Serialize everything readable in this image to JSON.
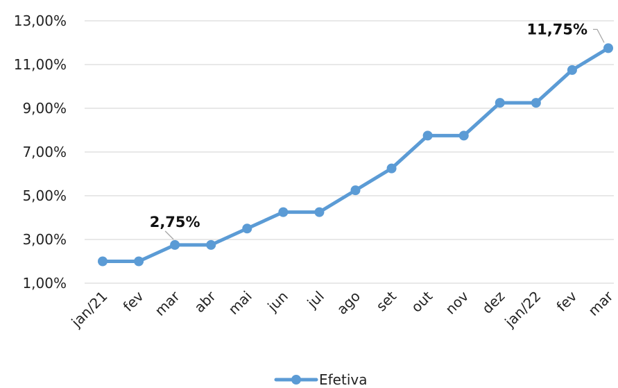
{
  "chart_data": {
    "type": "line",
    "categories": [
      "jan/21",
      "fev",
      "mar",
      "abr",
      "mai",
      "jun",
      "jul",
      "ago",
      "set",
      "out",
      "nov",
      "dez",
      "jan/22",
      "fev",
      "mar"
    ],
    "series": [
      {
        "name": "Efetiva",
        "values": [
          2.0,
          2.0,
          2.75,
          2.75,
          3.5,
          4.25,
          4.25,
          5.25,
          6.25,
          7.75,
          7.75,
          9.25,
          9.25,
          10.75,
          11.75
        ],
        "color": "#5B9BD5"
      }
    ],
    "y_ticks": [
      "1,00%",
      "3,00%",
      "5,00%",
      "7,00%",
      "9,00%",
      "11,00%",
      "13,00%"
    ],
    "y_tick_values": [
      1,
      3,
      5,
      7,
      9,
      11,
      13
    ],
    "ylim": [
      1,
      13
    ],
    "grid": true,
    "legend_position": "bottom",
    "annotations": [
      {
        "index": 2,
        "text": "2,75%"
      },
      {
        "index": 14,
        "text": "11,75%"
      }
    ],
    "gridline_color": "#D9D9D9",
    "label_leader_color": "#A6A6A6"
  }
}
